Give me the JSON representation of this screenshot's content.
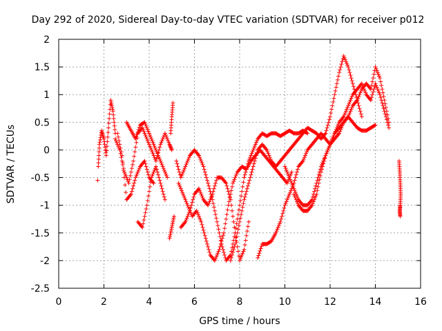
{
  "chart_data": {
    "type": "scatter",
    "title": "Day 292 of 2020, Sidereal Day-to-day VTEC variation (SDTVAR) for receiver p012",
    "xlabel": "GPS time / hours",
    "ylabel": "SDTVAR / TECUs",
    "xlim": [
      0,
      16
    ],
    "ylim": [
      -2.5,
      2
    ],
    "xticks": [
      0,
      2,
      4,
      6,
      8,
      10,
      12,
      14,
      16
    ],
    "yticks": [
      -2.5,
      -2,
      -1.5,
      -1,
      -0.5,
      0,
      0.5,
      1,
      1.5,
      2
    ],
    "xtick_labels": [
      "0",
      "2",
      "4",
      "6",
      "8",
      "10",
      "12",
      "14",
      "16"
    ],
    "ytick_labels": [
      "-2.5",
      "-2",
      "-1.5",
      "-1",
      "-0.5",
      "0",
      "0.5",
      "1",
      "1.5",
      "2"
    ],
    "grid": true,
    "marker": "+",
    "color": "#ff0000",
    "series": [
      {
        "name": "track-1",
        "x": [
          1.75,
          1.8,
          1.9,
          2.0,
          2.1,
          2.2,
          2.3,
          2.4,
          2.5
        ],
        "y": [
          -0.3,
          0.1,
          0.35,
          0.2,
          -0.1,
          0.4,
          0.9,
          0.7,
          0.3
        ]
      },
      {
        "name": "track-2",
        "x": [
          2.5,
          2.7,
          2.9,
          3.1,
          3.3,
          3.5,
          3.7,
          3.9,
          4.1,
          4.3,
          4.5,
          4.7,
          4.9,
          5.0
        ],
        "y": [
          0.2,
          0.0,
          -0.4,
          -0.6,
          -0.2,
          0.3,
          0.4,
          0.2,
          0.0,
          -0.2,
          0.1,
          0.3,
          0.1,
          0.0
        ]
      },
      {
        "name": "track-3",
        "x": [
          2.6,
          2.8,
          3.0,
          3.2,
          3.4,
          3.6,
          3.8,
          4.0,
          4.2
        ],
        "y": [
          0.3,
          -0.1,
          -0.9,
          -0.8,
          -0.5,
          -0.3,
          -0.2,
          -0.5,
          -0.6
        ]
      },
      {
        "name": "track-4",
        "x": [
          3.0,
          3.2,
          3.4,
          3.6,
          3.8,
          4.0,
          4.2,
          4.4,
          4.6,
          4.8
        ],
        "y": [
          0.5,
          0.35,
          0.2,
          0.45,
          0.5,
          0.3,
          0.1,
          -0.1,
          -0.3,
          -0.5
        ]
      },
      {
        "name": "track-5",
        "x": [
          3.5,
          3.7,
          3.9,
          4.1,
          4.3,
          4.5,
          4.7
        ],
        "y": [
          -1.3,
          -1.4,
          -1.0,
          -0.5,
          -0.3,
          -0.6,
          -0.9
        ]
      },
      {
        "name": "track-6",
        "x": [
          4.95,
          5.0,
          5.05
        ],
        "y": [
          0.3,
          0.6,
          0.85
        ]
      },
      {
        "name": "track-7",
        "x": [
          4.9,
          5.0,
          5.1
        ],
        "y": [
          -1.6,
          -1.4,
          -1.2
        ]
      },
      {
        "name": "track-8",
        "x": [
          5.2,
          5.4,
          5.6,
          5.8,
          6.0,
          6.2,
          6.4,
          6.6,
          6.8,
          7.0,
          7.2,
          7.4,
          7.6,
          7.8,
          8.0,
          8.2,
          8.4,
          8.6,
          8.8,
          9.0,
          9.2,
          9.4,
          9.6,
          9.8,
          10.0,
          10.2,
          10.4,
          10.6,
          10.8,
          11.0
        ],
        "y": [
          -0.2,
          -0.5,
          -0.3,
          -0.1,
          0.0,
          -0.1,
          -0.3,
          -0.6,
          -0.9,
          -1.3,
          -1.7,
          -2.0,
          -1.9,
          -1.5,
          -1.0,
          -0.5,
          -0.2,
          0.0,
          0.2,
          0.3,
          0.25,
          0.3,
          0.3,
          0.25,
          0.3,
          0.35,
          0.3,
          0.3,
          0.35,
          0.3
        ]
      },
      {
        "name": "track-9",
        "x": [
          5.3,
          5.5,
          5.7,
          5.9,
          6.1,
          6.3,
          6.5,
          6.7,
          6.9,
          7.1,
          7.3,
          7.5,
          7.7,
          7.9,
          8.1,
          8.3,
          8.5,
          8.7,
          8.9,
          9.1,
          9.3,
          9.5,
          9.7,
          9.9,
          10.1,
          10.3
        ],
        "y": [
          -0.6,
          -0.8,
          -1.0,
          -1.2,
          -1.1,
          -1.3,
          -1.6,
          -1.9,
          -2.0,
          -1.8,
          -1.5,
          -1.0,
          -0.6,
          -0.4,
          -0.3,
          -0.35,
          -0.2,
          -0.1,
          0.0,
          -0.1,
          -0.2,
          -0.3,
          -0.4,
          -0.5,
          -0.6,
          -0.4
        ]
      },
      {
        "name": "track-10",
        "x": [
          5.4,
          5.6,
          5.8,
          6.0,
          6.2,
          6.4,
          6.6,
          6.8,
          7.0,
          7.2,
          7.4,
          7.6,
          7.8,
          8.0,
          8.2,
          8.4
        ],
        "y": [
          -1.4,
          -1.3,
          -1.1,
          -0.8,
          -0.7,
          -0.9,
          -1.0,
          -0.8,
          -0.5,
          -0.5,
          -0.6,
          -0.9,
          -1.5,
          -2.0,
          -1.8,
          -1.3
        ]
      },
      {
        "name": "track-11",
        "x": [
          7.6,
          7.8,
          8.0,
          8.2,
          8.4,
          8.6,
          8.8,
          9.0,
          9.2,
          9.4,
          9.6,
          9.8,
          10.0,
          10.2,
          10.4,
          10.6,
          10.8,
          11.0,
          11.2,
          11.4,
          11.6,
          11.8,
          12.0,
          12.2,
          12.4,
          12.6,
          12.8,
          13.0,
          13.2,
          13.4
        ],
        "y": [
          -2.0,
          -1.7,
          -1.3,
          -0.9,
          -0.6,
          -0.3,
          0.0,
          0.1,
          0.0,
          -0.2,
          -0.3,
          -0.2,
          -0.1,
          0.0,
          0.1,
          0.2,
          0.3,
          0.4,
          0.35,
          0.3,
          0.2,
          0.3,
          0.6,
          1.0,
          1.4,
          1.7,
          1.5,
          1.2,
          0.9,
          0.6
        ]
      },
      {
        "name": "track-12",
        "x": [
          8.8,
          9.0,
          9.2,
          9.4,
          9.6,
          9.8,
          10.0,
          10.2,
          10.4,
          10.6,
          10.8,
          11.0,
          11.2,
          11.4,
          11.6,
          11.8,
          12.0,
          12.2,
          12.4,
          12.6,
          12.8,
          13.0,
          13.2,
          13.4,
          13.6,
          13.8,
          14.0,
          14.2,
          14.4,
          14.6
        ],
        "y": [
          -1.95,
          -1.7,
          -1.7,
          -1.65,
          -1.5,
          -1.3,
          -1.0,
          -0.8,
          -0.6,
          -0.3,
          -0.2,
          0.0,
          0.1,
          0.2,
          0.3,
          0.2,
          0.1,
          0.3,
          0.4,
          0.5,
          0.6,
          0.8,
          0.9,
          1.1,
          1.2,
          1.1,
          1.5,
          1.3,
          0.9,
          0.5
        ]
      },
      {
        "name": "track-13",
        "x": [
          10.0,
          10.2,
          10.4,
          10.6,
          10.8,
          11.0,
          11.2,
          11.4,
          11.6,
          11.8,
          12.0,
          12.2,
          12.4,
          12.6,
          12.8,
          13.0,
          13.2,
          13.4,
          13.6,
          13.8,
          14.0,
          14.2,
          14.4,
          14.6
        ],
        "y": [
          -0.3,
          -0.5,
          -0.7,
          -0.9,
          -1.0,
          -1.0,
          -0.9,
          -0.6,
          -0.3,
          -0.1,
          0.1,
          0.3,
          0.5,
          0.6,
          0.8,
          1.0,
          1.1,
          1.2,
          1.0,
          0.9,
          1.2,
          1.0,
          0.7,
          0.4
        ]
      },
      {
        "name": "track-14",
        "x": [
          10.4,
          10.6,
          10.8,
          11.0,
          11.2,
          11.4,
          11.6,
          11.8,
          12.0,
          12.2,
          12.4,
          12.6,
          12.8,
          13.0,
          13.2,
          13.4,
          13.6,
          13.8,
          14.0
        ],
        "y": [
          -0.8,
          -1.0,
          -1.1,
          -1.1,
          -1.0,
          -0.8,
          -0.4,
          -0.1,
          0.1,
          0.2,
          0.3,
          0.5,
          0.6,
          0.5,
          0.4,
          0.35,
          0.35,
          0.4,
          0.45
        ]
      },
      {
        "name": "track-15",
        "x": [
          15.05,
          15.08,
          15.1,
          15.12,
          15.1,
          15.08,
          15.1
        ],
        "y": [
          -0.2,
          -0.4,
          -0.6,
          -0.8,
          -1.0,
          -1.1,
          -1.2
        ]
      },
      {
        "name": "track-16",
        "x": [
          1.72
        ],
        "y": [
          -0.55
        ]
      }
    ]
  }
}
